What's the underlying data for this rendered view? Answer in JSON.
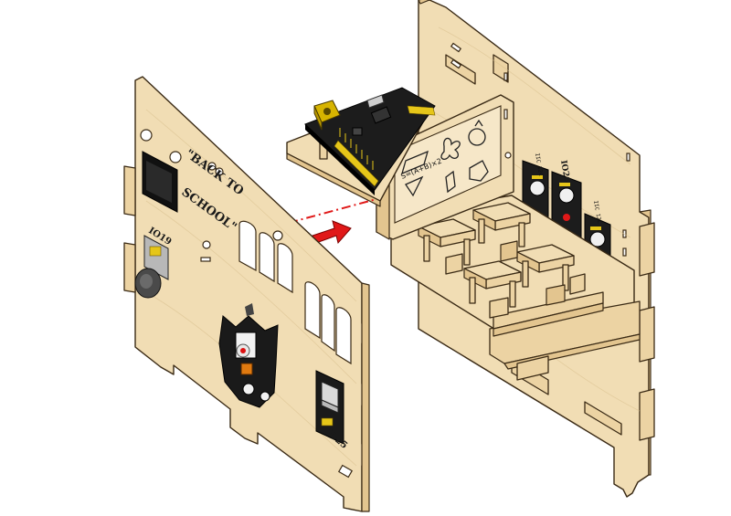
{
  "colors": {
    "wood": "#f1ddb4",
    "pcb": "#1c1c1c",
    "arrow": "#e01818",
    "guide_line": "#e01818",
    "header_pins": "#e6c619",
    "dc_jack": "#d7b400"
  },
  "front_panel": {
    "engraving_line1": "\"BACK TO",
    "engraving_line2": "SCHOOL\"",
    "module_labels": {
      "io19": "IO19",
      "io25": "IO25"
    }
  },
  "back_assembly": {
    "module_labels": {
      "io26": "IO26",
      "i2c_left": "IIC 12C",
      "i2c_right": "IIC 12C"
    },
    "board_formula": "S=(A+B)×2"
  },
  "arrow": {
    "direction": "right",
    "icon": "assembly-direction-arrow"
  }
}
